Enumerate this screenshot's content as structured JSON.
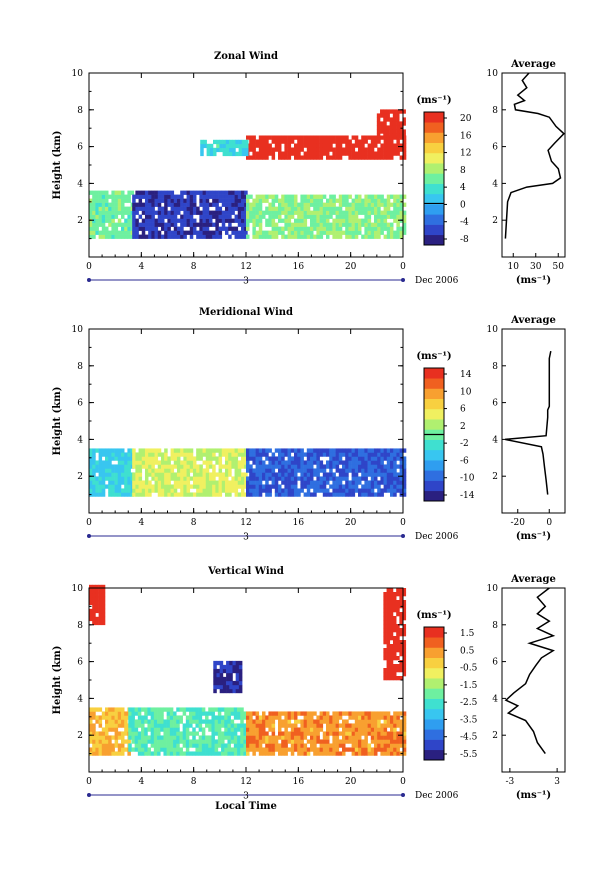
{
  "figure": {
    "date_label": "Dec 2006",
    "xlabel": "Local Time",
    "day_label": "3"
  },
  "colors": {
    "scale": [
      "#2a2080",
      "#2f45c8",
      "#2f6fe0",
      "#2f9ef0",
      "#38c6f0",
      "#3fe0d0",
      "#6ef0a0",
      "#b0f070",
      "#f0f060",
      "#f8d040",
      "#f8a030",
      "#f06020",
      "#e83020"
    ]
  },
  "chart_data": [
    {
      "id": "zonal",
      "type": "heatmap",
      "title": "Zonal Wind",
      "ylabel": "Height (km)",
      "xlim": [
        0,
        24
      ],
      "ylim": [
        0,
        10
      ],
      "xticks": [
        "0",
        "4",
        "8",
        "12",
        "16",
        "20",
        "0"
      ],
      "yticks": [
        "2",
        "4",
        "6",
        "8",
        "10"
      ],
      "unit_label": "(ms⁻¹)",
      "colorbar_ticks": [
        "20",
        "16",
        "12",
        "8",
        "4",
        "0",
        "-4",
        "-8"
      ],
      "colorbar_range": [
        -10,
        22
      ],
      "zero_line_value": 0,
      "regions": [
        {
          "t0": 0,
          "t1": 3.3,
          "h0": 1.0,
          "h1": 3.5,
          "value": 6
        },
        {
          "t0": 3.3,
          "t1": 12,
          "h0": 1.0,
          "h1": 3.5,
          "value": -7
        },
        {
          "t0": 12,
          "t1": 24,
          "h0": 1.0,
          "h1": 3.2,
          "value": 7
        },
        {
          "t0": 12,
          "t1": 24,
          "h0": 5.3,
          "h1": 6.5,
          "value": 22
        },
        {
          "t0": 22,
          "t1": 24,
          "h0": 6.5,
          "h1": 8.0,
          "value": 22
        },
        {
          "t0": 8.5,
          "t1": 12,
          "h0": 5.5,
          "h1": 6.3,
          "value": 3
        }
      ],
      "average": {
        "title": "Average",
        "xlabel": "(ms⁻¹)",
        "xticks": [
          "10",
          "30",
          "50"
        ],
        "yticks": [
          "2",
          "4",
          "6",
          "8",
          "10"
        ],
        "xlim": [
          0,
          56
        ],
        "profile": [
          [
            3,
            1.0
          ],
          [
            4,
            2.0
          ],
          [
            5,
            3.0
          ],
          [
            8,
            3.5
          ],
          [
            22,
            3.8
          ],
          [
            45,
            4.0
          ],
          [
            52,
            4.3
          ],
          [
            50,
            4.8
          ],
          [
            44,
            5.2
          ],
          [
            41,
            5.8
          ],
          [
            47,
            6.2
          ],
          [
            55,
            6.7
          ],
          [
            48,
            7.1
          ],
          [
            42,
            7.6
          ],
          [
            32,
            7.8
          ],
          [
            12,
            8.0
          ],
          [
            11,
            8.3
          ],
          [
            20,
            8.5
          ],
          [
            14,
            8.8
          ],
          [
            22,
            9.2
          ],
          [
            18,
            9.6
          ],
          [
            24,
            10
          ]
        ]
      }
    },
    {
      "id": "meridional",
      "type": "heatmap",
      "title": "Meridional Wind",
      "ylabel": "Height (km)",
      "xlim": [
        0,
        24
      ],
      "ylim": [
        0,
        10
      ],
      "xticks": [
        "0",
        "4",
        "8",
        "12",
        "16",
        "20",
        "0"
      ],
      "yticks": [
        "2",
        "4",
        "6",
        "8",
        "10"
      ],
      "unit_label": "(ms⁻¹)",
      "colorbar_ticks": [
        "14",
        "10",
        "6",
        "2",
        "-2",
        "-6",
        "-10",
        "-14"
      ],
      "colorbar_range": [
        -16,
        16
      ],
      "zero_line_value": 0,
      "regions": [
        {
          "t0": 0,
          "t1": 3.3,
          "h0": 0.9,
          "h1": 3.3,
          "value": -4
        },
        {
          "t0": 3.3,
          "t1": 12,
          "h0": 0.9,
          "h1": 3.5,
          "value": 4
        },
        {
          "t0": 12,
          "t1": 24,
          "h0": 0.9,
          "h1": 3.3,
          "value": -11
        }
      ],
      "average": {
        "title": "Average",
        "xlabel": "(ms⁻¹)",
        "xticks": [
          "-20",
          "0"
        ],
        "yticks": [
          "2",
          "4",
          "6",
          "8",
          "10"
        ],
        "xlim": [
          -30,
          10
        ],
        "profile": [
          [
            -1,
            1.0
          ],
          [
            -2,
            1.8
          ],
          [
            -3,
            2.5
          ],
          [
            -4,
            3.2
          ],
          [
            -5,
            3.6
          ],
          [
            -28,
            4.0
          ],
          [
            -2,
            4.2
          ],
          [
            -1,
            5.2
          ],
          [
            -1,
            5.6
          ],
          [
            0,
            5.8
          ],
          [
            0,
            7.6
          ],
          [
            0,
            8.4
          ],
          [
            1,
            8.8
          ]
        ]
      }
    },
    {
      "id": "vertical",
      "type": "heatmap",
      "title": "Vertical Wind",
      "ylabel": "Height (km)",
      "xlim": [
        0,
        24
      ],
      "ylim": [
        0,
        10
      ],
      "xticks": [
        "0",
        "4",
        "8",
        "12",
        "16",
        "20",
        "0"
      ],
      "yticks": [
        "2",
        "4",
        "6",
        "8",
        "10"
      ],
      "unit_label": "(ms⁻¹)",
      "colorbar_ticks": [
        "1.5",
        "0.5",
        "-0.5",
        "-1.5",
        "-2.5",
        "-3.5",
        "-4.5",
        "-5.5"
      ],
      "colorbar_range": [
        -6.5,
        2
      ],
      "zero_line_value": null,
      "regions": [
        {
          "t0": 0,
          "t1": 3.0,
          "h0": 0.9,
          "h1": 3.5,
          "value": 0
        },
        {
          "t0": 3.0,
          "t1": 12,
          "h0": 0.9,
          "h1": 3.5,
          "value": -2.5
        },
        {
          "t0": 12,
          "t1": 24,
          "h0": 0.9,
          "h1": 3.2,
          "value": 0.5
        },
        {
          "t0": 9.5,
          "t1": 11.5,
          "h0": 4.3,
          "h1": 6.0,
          "value": -6.0
        },
        {
          "t0": 0,
          "t1": 1.0,
          "h0": 8.0,
          "h1": 10,
          "value": 2
        },
        {
          "t0": 22.5,
          "t1": 24,
          "h0": 5.0,
          "h1": 10,
          "value": 2
        }
      ],
      "average": {
        "title": "Average",
        "xlabel": "(ms⁻¹)",
        "xticks": [
          "-3",
          "3"
        ],
        "yticks": [
          "2",
          "4",
          "6",
          "8",
          "10"
        ],
        "xlim": [
          -4,
          4
        ],
        "profile": [
          [
            1.5,
            1.0
          ],
          [
            0.5,
            1.6
          ],
          [
            0,
            2.2
          ],
          [
            -1,
            2.8
          ],
          [
            -3.2,
            3.2
          ],
          [
            -2,
            3.6
          ],
          [
            -3.5,
            3.9
          ],
          [
            -2.5,
            4.3
          ],
          [
            -1,
            4.8
          ],
          [
            -0.5,
            5.3
          ],
          [
            0.3,
            5.8
          ],
          [
            1,
            6.2
          ],
          [
            2.5,
            6.6
          ],
          [
            -0.5,
            7.0
          ],
          [
            2.5,
            7.4
          ],
          [
            0.5,
            7.8
          ],
          [
            2,
            8.2
          ],
          [
            0.5,
            8.6
          ],
          [
            1.5,
            9.0
          ],
          [
            0.5,
            9.5
          ],
          [
            2,
            10
          ]
        ]
      }
    }
  ]
}
